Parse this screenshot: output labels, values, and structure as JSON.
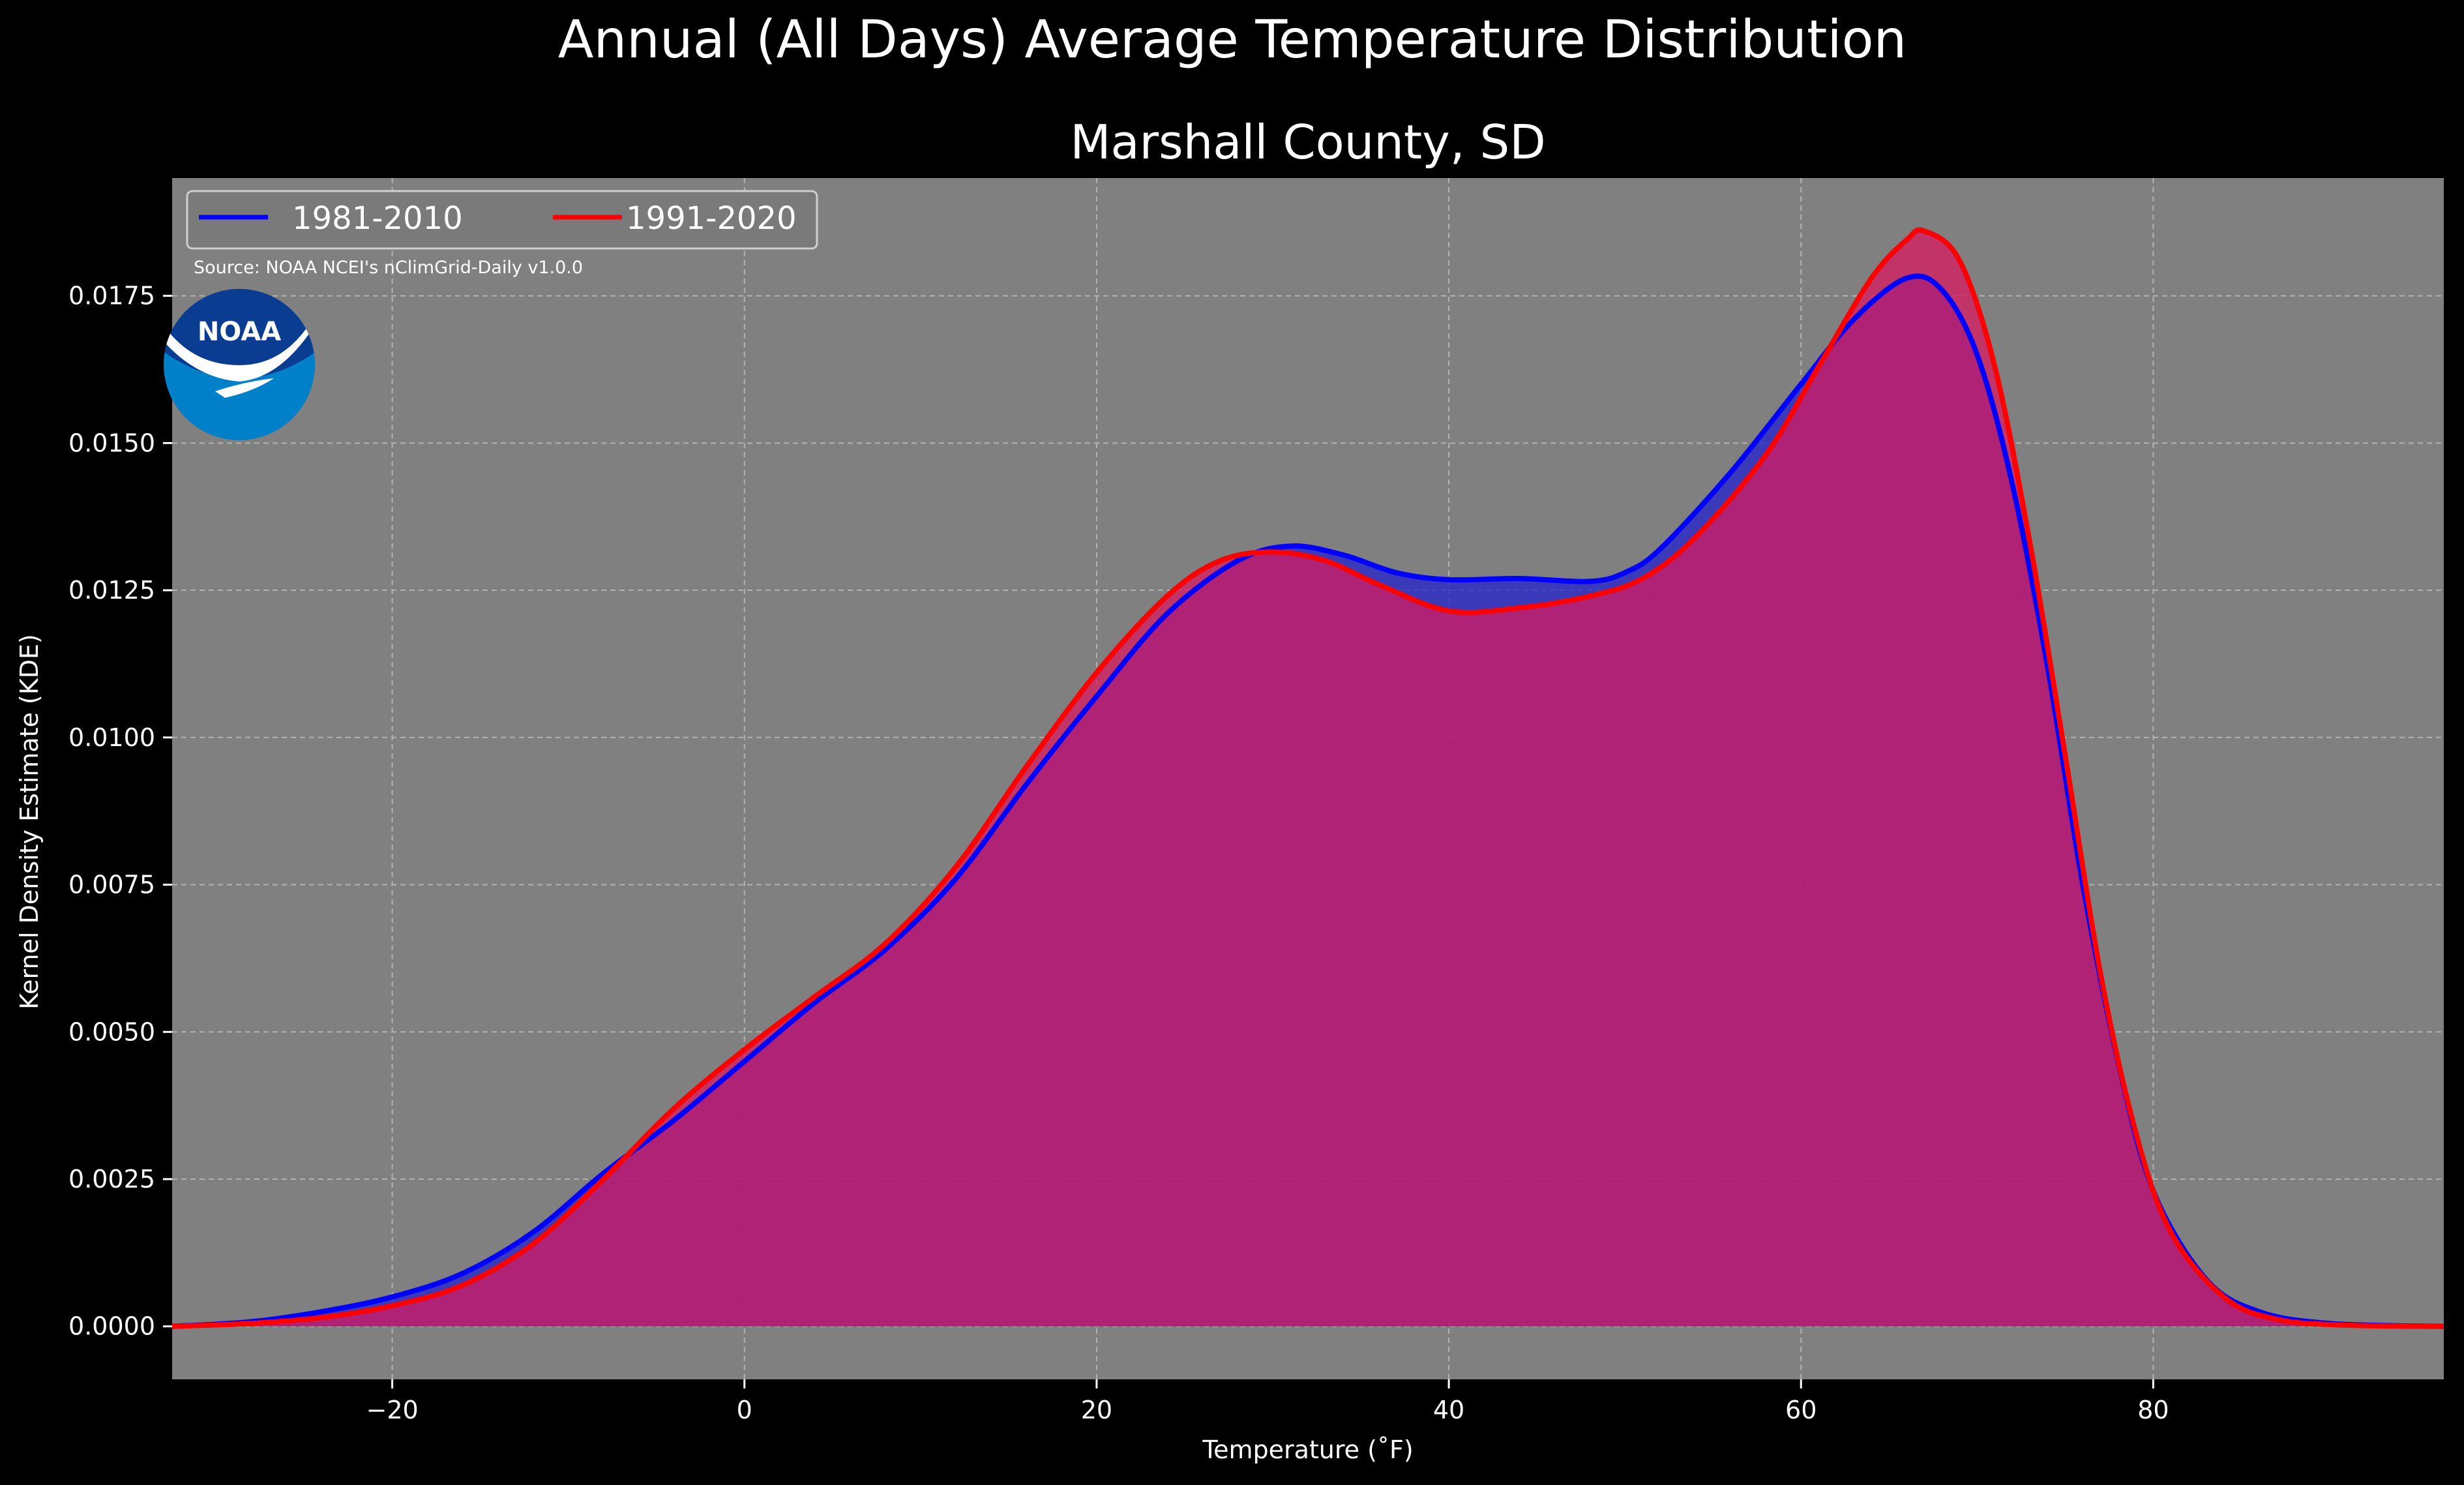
{
  "chart_data": {
    "type": "area",
    "title": "Annual (All Days) Average Temperature Distribution",
    "subtitle": "Marshall County, SD",
    "xlabel": "Temperature ($^\\circ$F)",
    "xlabel_display": "Temperature (˚F)",
    "ylabel": "Kernel Density Estimate (KDE)",
    "xlim": [
      -32.5,
      96.5
    ],
    "ylim": [
      -0.0009,
      0.0195
    ],
    "x_ticks": [
      -20,
      0,
      20,
      40,
      60,
      80
    ],
    "x_tick_labels": [
      "−20",
      "0",
      "20",
      "40",
      "60",
      "80"
    ],
    "y_ticks": [
      0,
      0.0025,
      0.005,
      0.0075,
      0.01,
      0.0125,
      0.015,
      0.0175
    ],
    "y_tick_labels": [
      "0.0000",
      "0.0025",
      "0.0050",
      "0.0075",
      "0.0100",
      "0.0125",
      "0.0150",
      "0.0175"
    ],
    "grid": true,
    "legend_position": "top-left",
    "source_note": "Source: NOAA NCEI's nClimGrid-Daily v1.0.0",
    "logo_text": "NOAA",
    "colors": {
      "background": "#000000",
      "plot_background": "#808080",
      "text": "#ffffff",
      "grid": "#b3b3b3"
    },
    "series": [
      {
        "name": "1981-2010",
        "color": "#0000ff",
        "fill_color": "#2222cc",
        "points": [
          [
            -32.5,
            0.0
          ],
          [
            -28,
            8e-05
          ],
          [
            -24,
            0.00025
          ],
          [
            -20,
            0.0005
          ],
          [
            -16,
            0.0009
          ],
          [
            -12,
            0.0016
          ],
          [
            -8,
            0.0026
          ],
          [
            -4,
            0.0035
          ],
          [
            0,
            0.0045
          ],
          [
            4,
            0.0055
          ],
          [
            8,
            0.0064
          ],
          [
            12,
            0.0076
          ],
          [
            16,
            0.0092
          ],
          [
            20,
            0.0107
          ],
          [
            24,
            0.0121
          ],
          [
            28,
            0.013
          ],
          [
            31,
            0.01325
          ],
          [
            34,
            0.0131
          ],
          [
            37,
            0.0128
          ],
          [
            40,
            0.01268
          ],
          [
            44,
            0.0127
          ],
          [
            48,
            0.01265
          ],
          [
            50,
            0.0128
          ],
          [
            52,
            0.0132
          ],
          [
            56,
            0.0145
          ],
          [
            60,
            0.016
          ],
          [
            63,
            0.0171
          ],
          [
            66,
            0.0178
          ],
          [
            68,
            0.0176
          ],
          [
            70,
            0.0165
          ],
          [
            72,
            0.0143
          ],
          [
            74,
            0.0112
          ],
          [
            76,
            0.0075
          ],
          [
            78,
            0.0045
          ],
          [
            80,
            0.0023
          ],
          [
            83,
            0.0008
          ],
          [
            86,
            0.00025
          ],
          [
            90,
            5e-05
          ],
          [
            96.5,
            0.0
          ]
        ]
      },
      {
        "name": "1991-2020",
        "color": "#ff0000",
        "fill_color": "#d81b60",
        "points": [
          [
            -32.5,
            0.0
          ],
          [
            -28,
            5e-05
          ],
          [
            -24,
            0.00015
          ],
          [
            -20,
            0.00035
          ],
          [
            -16,
            0.0007
          ],
          [
            -12,
            0.0014
          ],
          [
            -8,
            0.0025
          ],
          [
            -4,
            0.0037
          ],
          [
            0,
            0.0047
          ],
          [
            4,
            0.0056
          ],
          [
            8,
            0.0065
          ],
          [
            12,
            0.0078
          ],
          [
            16,
            0.0095
          ],
          [
            20,
            0.0111
          ],
          [
            24,
            0.0124
          ],
          [
            27,
            0.013
          ],
          [
            30,
            0.01315
          ],
          [
            33,
            0.013
          ],
          [
            36,
            0.0126
          ],
          [
            40,
            0.01215
          ],
          [
            44,
            0.0122
          ],
          [
            48,
            0.0124
          ],
          [
            51,
            0.0127
          ],
          [
            54,
            0.0134
          ],
          [
            58,
            0.0148
          ],
          [
            61,
            0.0163
          ],
          [
            64,
            0.0178
          ],
          [
            66,
            0.01845
          ],
          [
            67,
            0.0186
          ],
          [
            69,
            0.0181
          ],
          [
            71,
            0.0163
          ],
          [
            73,
            0.0133
          ],
          [
            75,
            0.0097
          ],
          [
            77,
            0.006
          ],
          [
            79,
            0.0033
          ],
          [
            81,
            0.0016
          ],
          [
            84,
            0.0005
          ],
          [
            87,
            0.00012
          ],
          [
            91,
            2e-05
          ],
          [
            96.5,
            0.0
          ]
        ]
      }
    ]
  }
}
